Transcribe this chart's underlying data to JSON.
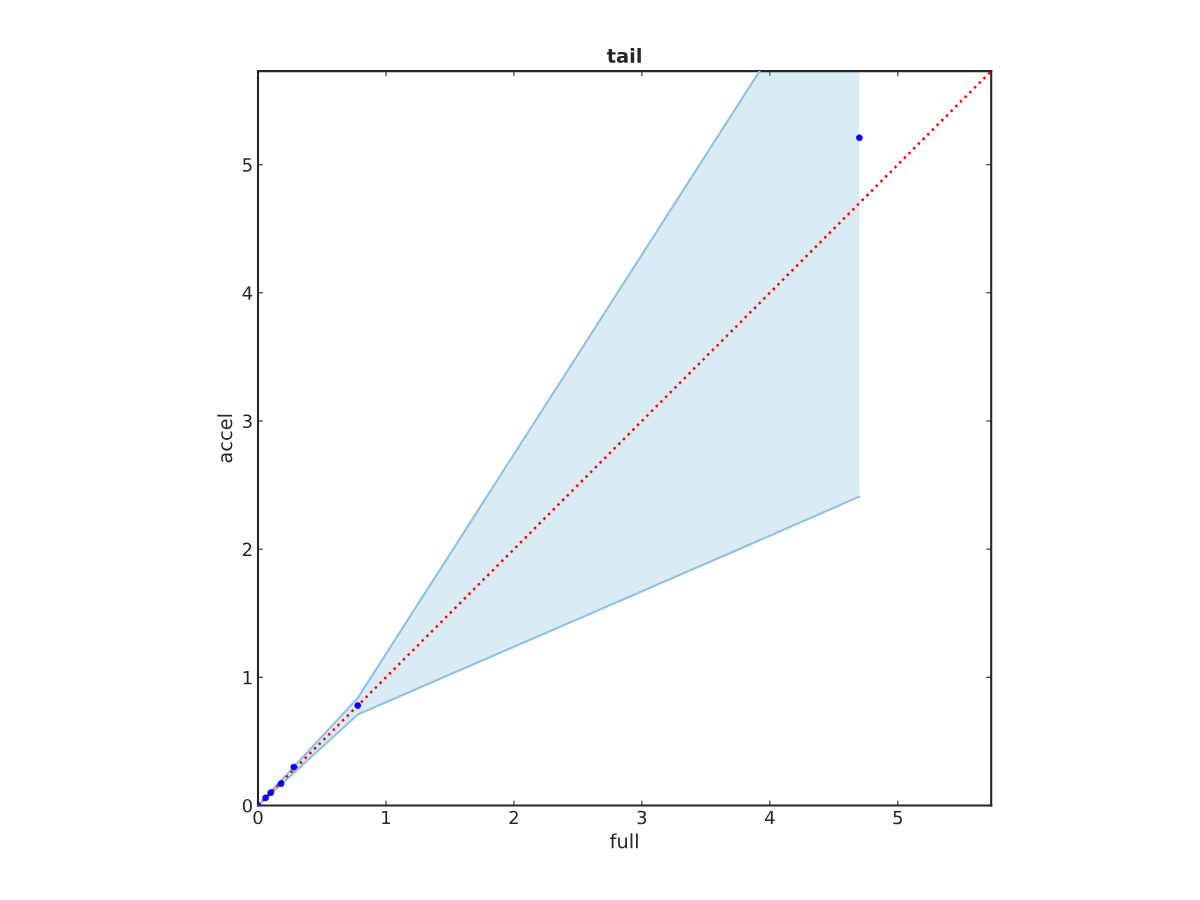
{
  "chart_data": {
    "type": "scatter",
    "title": "tail",
    "xlabel": "full",
    "ylabel": "accel",
    "xlim": [
      0,
      5.73
    ],
    "ylim": [
      0,
      5.73
    ],
    "xticks": [
      0,
      1,
      2,
      3,
      4,
      5
    ],
    "yticks": [
      0,
      1,
      2,
      3,
      4,
      5
    ],
    "grid": false,
    "legend": false,
    "series": [
      {
        "type": "line",
        "color": "#8fc1e3",
        "x": [
          0,
          0.78,
          3.92,
          4.7
        ],
        "values": [
          0,
          0.71,
          2.07,
          2.41
        ],
        "lower": [
          0,
          0.71,
          2.07,
          2.41
        ],
        "upper": [
          0,
          0.84,
          5.73,
          5.73
        ]
      },
      {
        "type": "line",
        "color": "#8fc1e3",
        "x": [
          0,
          0.78,
          3.92
        ],
        "values": [
          0,
          0.84,
          5.73
        ]
      },
      {
        "type": "line",
        "color": "#ff0000",
        "line_style": "dotted",
        "marker": "none",
        "x": [
          0,
          5.73
        ],
        "values": [
          0,
          5.73
        ]
      },
      {
        "color": "#0000ff",
        "marker": "circle",
        "x": [
          0,
          0.06,
          0.1,
          0.18,
          0.28,
          0.78,
          4.7
        ],
        "values": [
          0,
          0.06,
          0.1,
          0.17,
          0.3,
          0.78,
          5.21
        ]
      }
    ]
  }
}
